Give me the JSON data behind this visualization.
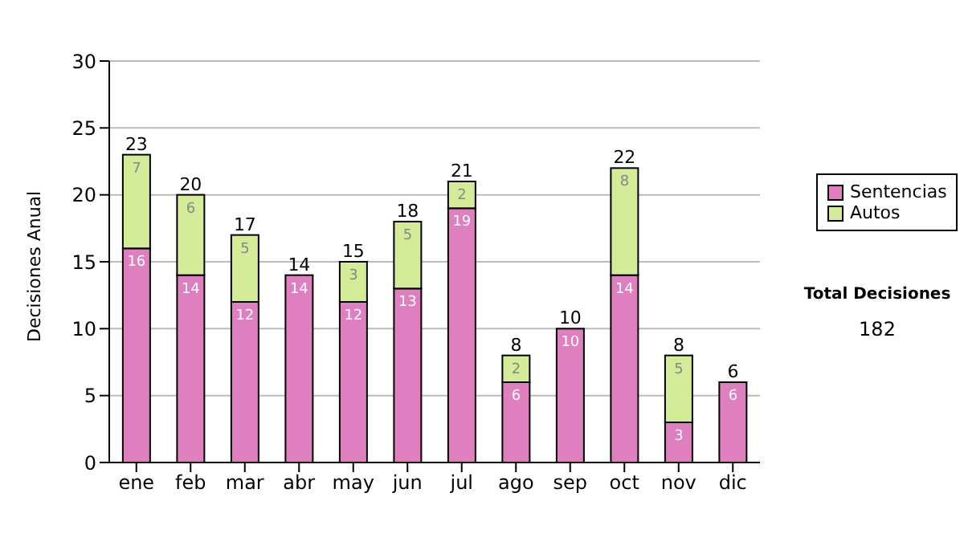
{
  "chart_data": {
    "type": "bar",
    "stacked": true,
    "ylabel": "Decisiones Anual",
    "categories": [
      "ene",
      "feb",
      "mar",
      "abr",
      "may",
      "jun",
      "jul",
      "ago",
      "sep",
      "oct",
      "nov",
      "dic"
    ],
    "series": [
      {
        "name": "Sentencias",
        "color": "#e07fc0",
        "values": [
          16,
          14,
          12,
          14,
          12,
          13,
          19,
          6,
          10,
          14,
          3,
          6
        ],
        "value_labels": [
          "16",
          "14",
          "12",
          "14",
          "12",
          "13",
          "19",
          "6",
          "10",
          "14",
          "3",
          "6"
        ]
      },
      {
        "name": "Autos",
        "color": "#d4eb98",
        "values": [
          7,
          6,
          5,
          0,
          3,
          5,
          2,
          2,
          0,
          8,
          5,
          0
        ],
        "value_labels": [
          "7",
          "6",
          "5",
          null,
          "3",
          "5",
          "2",
          "2",
          null,
          "8",
          "5",
          null
        ]
      }
    ],
    "totals": [
      "23",
      "20",
      "17",
      "14",
      "15",
      "18",
      "21",
      "8",
      "10",
      "22",
      "8",
      "6"
    ],
    "ylim": [
      0,
      30
    ],
    "yticks": [
      0,
      5,
      10,
      15,
      20,
      25,
      30
    ],
    "grid": "y",
    "legend": "right",
    "annotations": [
      "Total Decisiones",
      "182"
    ]
  }
}
